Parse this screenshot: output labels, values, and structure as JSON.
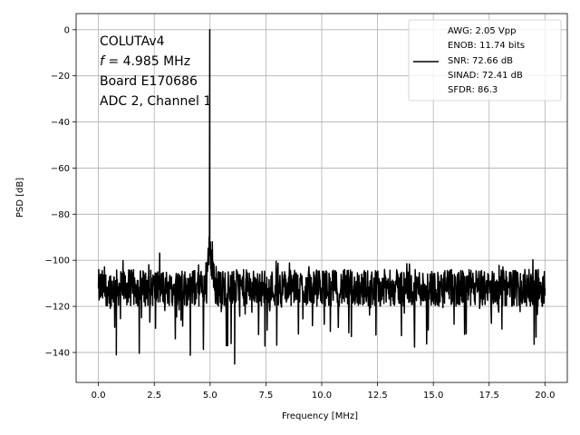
{
  "chart_data": {
    "type": "line",
    "xlabel": "Frequency [MHz]",
    "ylabel": "PSD [dB]",
    "xlim": [
      -1,
      21
    ],
    "ylim": [
      -153,
      7
    ],
    "xticks": [
      0.0,
      2.5,
      5.0,
      7.5,
      10.0,
      12.5,
      15.0,
      17.5,
      20.0
    ],
    "xtick_labels": [
      "0.0",
      "2.5",
      "5.0",
      "7.5",
      "10.0",
      "12.5",
      "15.0",
      "17.5",
      "20.0"
    ],
    "yticks": [
      0,
      -20,
      -40,
      -60,
      -80,
      -100,
      -120,
      -140
    ],
    "ytick_labels": [
      "0",
      "−20",
      "−40",
      "−60",
      "−80",
      "−100",
      "−120",
      "−140"
    ],
    "grid": true,
    "legend_position": "top-right",
    "annotation_lines": [
      "COLUTAv4",
      "f = 4.985 MHz",
      "Board E170686",
      "ADC 2, Channel 1"
    ],
    "series": [
      {
        "name": "AWG: 2.05 Vpp\nENOB: 11.74 bits\nSNR: 72.66 dB\nSINAD: 72.41 dB\nSFDR: 86.3",
        "color": "#000000",
        "x": [
          0.0,
          0.8,
          4.5,
          4.9,
          4.985,
          5.1,
          5.5,
          6.1,
          10.0,
          15.0,
          20.0
        ],
        "y": [
          -112,
          -141,
          -112,
          -100,
          0,
          -92,
          -112,
          -145,
          -112,
          -112,
          -112
        ],
        "noise_floor_db": -112,
        "noise_min_db": -145,
        "noise_max_db": -99,
        "peak_x": 4.985,
        "peak_db": 0
      }
    ],
    "legend_lines": [
      "AWG: 2.05 Vpp",
      "ENOB: 11.74 bits",
      "SNR: 72.66 dB",
      "SINAD: 72.41 dB",
      "SFDR: 86.3"
    ]
  }
}
